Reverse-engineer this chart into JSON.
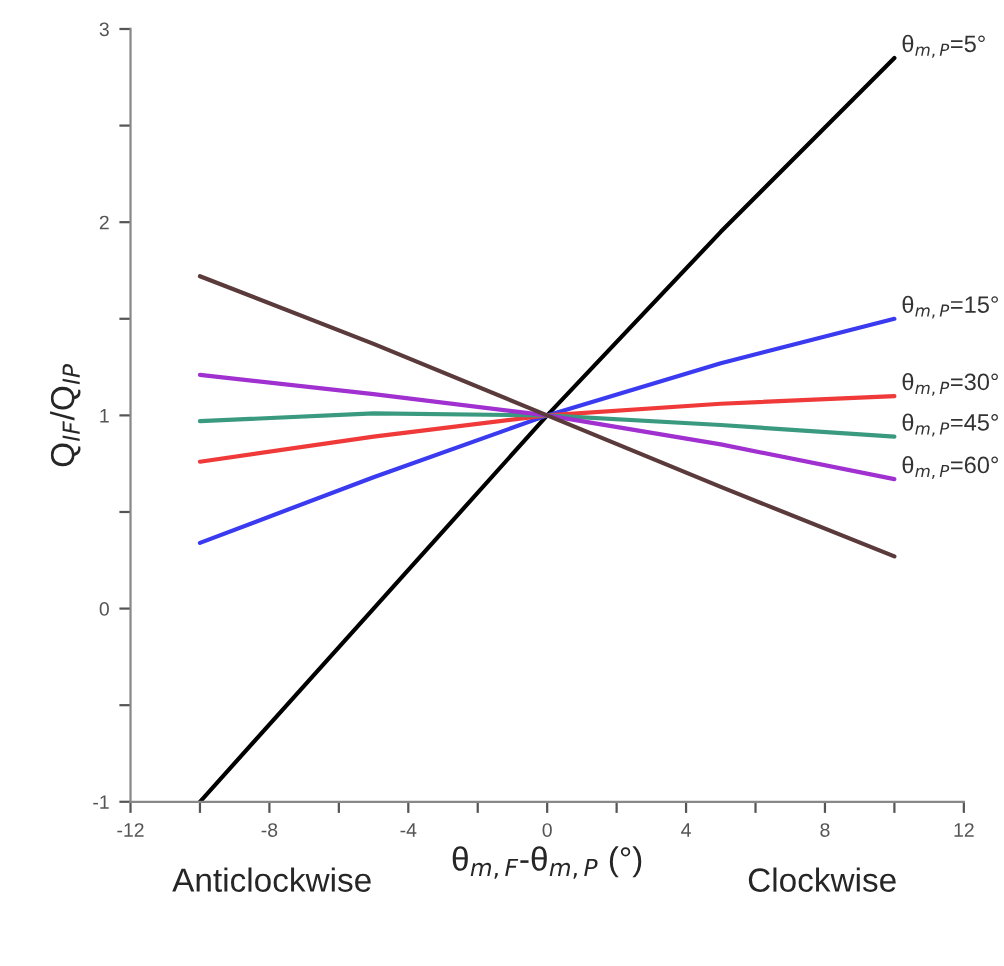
{
  "chart_data": {
    "type": "line",
    "xlabel": "θ$_{m,F}$-θ$_{m,P}$ (°)",
    "ylabel": "Q$_{IF}$/Q$_{IP}$",
    "x": [
      -10,
      -5,
      0,
      5,
      10
    ],
    "series": [
      {
        "name": "θ$_{m,P}$=5°",
        "color": "#000000",
        "values": [
          -1,
          0.0,
          1,
          1.95,
          2.85
        ]
      },
      {
        "name": "θ$_{m,P}$=15°",
        "color": "#3a3af0",
        "values": [
          0.34,
          0.68,
          1,
          1.27,
          1.5
        ]
      },
      {
        "name": "θ$_{m,P}$=30°",
        "color": "#f03a3a",
        "values": [
          0.76,
          0.89,
          1,
          1.06,
          1.1
        ]
      },
      {
        "name": "θ$_{m,P}$=45°",
        "color": "#3a9a80",
        "values": [
          0.97,
          1.01,
          1,
          0.95,
          0.89
        ]
      },
      {
        "name": "θ$_{m,P}$=60°",
        "color": "#a030d0",
        "values": [
          1.21,
          1.11,
          1,
          0.85,
          0.67
        ]
      },
      {
        "color": "#5a3a3a",
        "values": [
          1.72,
          1.37,
          1,
          0.63,
          0.27
        ]
      }
    ],
    "xlim": [
      -12,
      12
    ],
    "ylim": [
      -1,
      3
    ],
    "xticks": [
      -12,
      {
        "value": -10,
        "label": null
      },
      -8,
      {
        "value": -6,
        "label": null
      },
      -4,
      {
        "value": -2,
        "label": null
      },
      0,
      {
        "value": 2,
        "label": null
      },
      4,
      {
        "value": 6,
        "label": null
      },
      8,
      {
        "value": 10,
        "label": null
      },
      12
    ],
    "yticks": [
      -1,
      {
        "value": -0.5,
        "label": null
      },
      0,
      {
        "value": 0.5,
        "label": null
      },
      1,
      {
        "value": 1.5,
        "label": null
      },
      2,
      {
        "value": 2.5,
        "label": null
      },
      3
    ],
    "annotations": [
      "Anticlockwise",
      "Clockwise"
    ],
    "grid": false,
    "legend": false,
    "marker": "none",
    "line_style": "solid"
  }
}
